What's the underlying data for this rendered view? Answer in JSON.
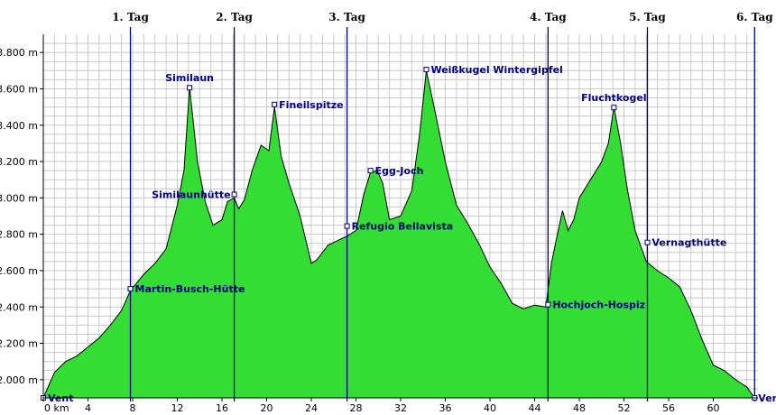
{
  "chart_data": {
    "type": "area",
    "title": "",
    "xlabel": "",
    "ylabel": "",
    "xlim": [
      0,
      64
    ],
    "ylim": [
      1900,
      3900
    ],
    "grid": true,
    "fill_color": "#33dd33",
    "line_color": "#000000",
    "marker_color": "#000080",
    "x_ticks": [
      0,
      4,
      8,
      12,
      16,
      20,
      24,
      28,
      32,
      36,
      40,
      44,
      48,
      52,
      56,
      60
    ],
    "x_tick_labels": [
      "0 km",
      "4",
      "8",
      "12",
      "16",
      "20",
      "24",
      "28",
      "32",
      "36",
      "40",
      "44",
      "48",
      "52",
      "56",
      "60"
    ],
    "y_ticks": [
      2000,
      2200,
      2400,
      2600,
      2800,
      3000,
      3200,
      3400,
      3600,
      3800
    ],
    "y_tick_labels": [
      "2.000 m",
      "2.200 m",
      "2.400 m",
      "2.600 m",
      "2.800 m",
      "3.000 m",
      "3.200 m",
      "3.400 m",
      "3.600 m",
      "3.800 m"
    ],
    "profile": {
      "x": [
        0,
        1,
        2,
        3,
        4,
        5,
        6,
        7,
        7.8,
        9,
        10,
        11,
        12,
        12.6,
        13.1,
        13.8,
        14.5,
        15.2,
        16,
        16.5,
        17.1,
        17.5,
        18,
        18.7,
        19.5,
        20.2,
        20.7,
        21.3,
        22,
        23,
        24,
        24.5,
        25.5,
        27.2,
        28,
        28.7,
        29.3,
        29.9,
        30.4,
        31,
        32,
        33,
        33.7,
        34.3,
        35,
        36,
        37,
        38,
        39,
        40,
        41,
        42,
        43,
        44,
        45,
        45.5,
        46,
        46.5,
        47,
        47.5,
        48,
        49,
        50,
        50.6,
        51.1,
        51.7,
        52.3,
        53,
        54,
        55,
        56,
        57,
        58,
        59,
        60,
        61,
        62,
        63,
        63.7
      ],
      "y": [
        1900,
        2040,
        2100,
        2130,
        2180,
        2230,
        2300,
        2380,
        2490,
        2580,
        2640,
        2720,
        2960,
        3150,
        3610,
        3200,
        2980,
        2850,
        2880,
        2980,
        3000,
        2940,
        2990,
        3150,
        3290,
        3260,
        3500,
        3230,
        3080,
        2900,
        2640,
        2660,
        2740,
        2790,
        2820,
        3020,
        3140,
        3150,
        3080,
        2880,
        2900,
        3040,
        3350,
        3700,
        3500,
        3200,
        2960,
        2860,
        2750,
        2620,
        2530,
        2420,
        2390,
        2410,
        2400,
        2640,
        2790,
        2930,
        2820,
        2880,
        3000,
        3100,
        3200,
        3300,
        3500,
        3300,
        3050,
        2820,
        2650,
        2600,
        2560,
        2510,
        2380,
        2220,
        2080,
        2050,
        2000,
        1960,
        1900
      ]
    },
    "points": [
      {
        "name": "Vent",
        "x": 0,
        "y": 1900
      },
      {
        "name": "Martin-Busch-Hütte",
        "x": 7.8,
        "y": 2500
      },
      {
        "name": "Similaun",
        "x": 13.1,
        "y": 3606
      },
      {
        "name": "Similaunhütte",
        "x": 17.1,
        "y": 3019
      },
      {
        "name": "Fineilspitze",
        "x": 20.7,
        "y": 3514
      },
      {
        "name": "Refugio Bellavista",
        "x": 27.2,
        "y": 2845
      },
      {
        "name": "Egg-Joch",
        "x": 29.3,
        "y": 3150
      },
      {
        "name": "Weißkugel Wintergipfel",
        "x": 34.3,
        "y": 3706
      },
      {
        "name": "Hochjoch-Hospiz",
        "x": 45.2,
        "y": 2413
      },
      {
        "name": "Fluchtkogel",
        "x": 51.1,
        "y": 3497
      },
      {
        "name": "Vernagthütte",
        "x": 54.1,
        "y": 2755
      },
      {
        "name": "Vent",
        "x": 63.7,
        "y": 1900
      }
    ],
    "days": [
      {
        "label": "1. Tag",
        "x": 7.8
      },
      {
        "label": "2. Tag",
        "x": 17.1
      },
      {
        "label": "3. Tag",
        "x": 27.2
      },
      {
        "label": "4. Tag",
        "x": 45.2
      },
      {
        "label": "5. Tag",
        "x": 54.1
      },
      {
        "label": "6. Tag",
        "x": 63.7
      }
    ]
  }
}
